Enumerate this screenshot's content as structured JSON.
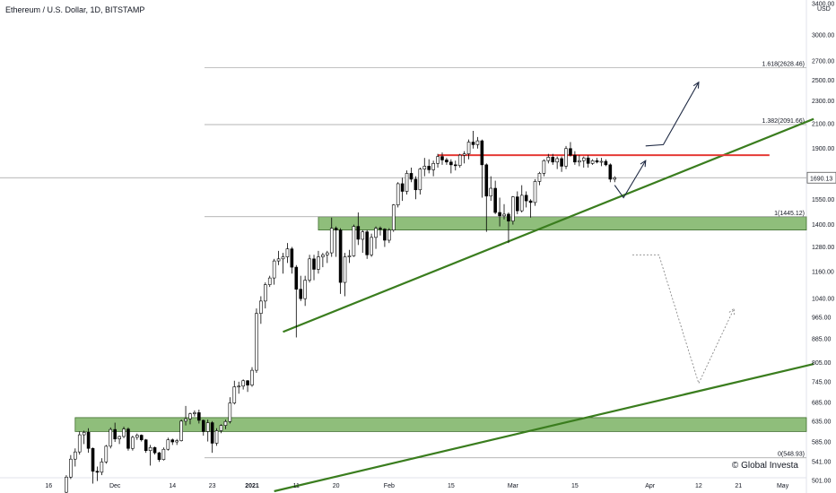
{
  "chart_data": {
    "type": "candlestick",
    "title": "Ethereum / U.S. Dollar, 1D, BITSTAMP",
    "y_unit": "USD",
    "y_scale": "log",
    "ylim": [
      480,
      3450
    ],
    "y_ticks": [
      3400,
      3000,
      2700,
      2500,
      2300,
      2100,
      1900,
      1690.13,
      1550,
      1400,
      1280,
      1160,
      1040,
      965,
      885,
      805,
      745,
      685,
      635,
      585,
      541,
      501
    ],
    "y_tick_labels": [
      "3400.00",
      "3000.00",
      "2700.00",
      "2500.00",
      "2300.00",
      "2100.00",
      "1900.00",
      "1690.13",
      "1550.00",
      "1400.00",
      "1280.00",
      "1160.00",
      "1040.00",
      "965.00",
      "885.00",
      "805.00",
      "745.00",
      "685.00",
      "635.00",
      "585.00",
      "541.00",
      "501.00"
    ],
    "x_labels": [
      {
        "label": "16",
        "date": "2020-11-16"
      },
      {
        "label": "Dec",
        "date": "2020-12-01"
      },
      {
        "label": "14",
        "date": "2020-12-14"
      },
      {
        "label": "23",
        "date": "2020-12-23"
      },
      {
        "label": "2021",
        "date": "2021-01-01"
      },
      {
        "label": "11",
        "date": "2021-01-11"
      },
      {
        "label": "20",
        "date": "2021-01-20"
      },
      {
        "label": "Feb",
        "date": "2021-02-01"
      },
      {
        "label": "15",
        "date": "2021-02-15"
      },
      {
        "label": "Mar",
        "date": "2021-03-01"
      },
      {
        "label": "15",
        "date": "2021-03-15"
      },
      {
        "label": "Apr",
        "date": "2021-04-01"
      },
      {
        "label": "12",
        "date": "2021-04-12"
      },
      {
        "label": "21",
        "date": "2021-04-21"
      },
      {
        "label": "May",
        "date": "2021-05-01"
      }
    ],
    "candles": [
      {
        "date": "2020-11-20",
        "o": 478,
        "h": 512,
        "l": 470,
        "c": 508
      },
      {
        "date": "2020-11-21",
        "o": 508,
        "h": 555,
        "l": 504,
        "c": 546
      },
      {
        "date": "2020-11-22",
        "o": 546,
        "h": 570,
        "l": 530,
        "c": 562
      },
      {
        "date": "2020-11-23",
        "o": 562,
        "h": 610,
        "l": 556,
        "c": 602
      },
      {
        "date": "2020-11-24",
        "o": 602,
        "h": 612,
        "l": 580,
        "c": 608
      },
      {
        "date": "2020-11-25",
        "o": 608,
        "h": 618,
        "l": 560,
        "c": 570
      },
      {
        "date": "2020-11-26",
        "o": 570,
        "h": 572,
        "l": 495,
        "c": 520
      },
      {
        "date": "2020-11-27",
        "o": 520,
        "h": 530,
        "l": 500,
        "c": 518
      },
      {
        "date": "2020-11-28",
        "o": 518,
        "h": 548,
        "l": 512,
        "c": 540
      },
      {
        "date": "2020-11-29",
        "o": 540,
        "h": 578,
        "l": 536,
        "c": 575
      },
      {
        "date": "2020-11-30",
        "o": 575,
        "h": 620,
        "l": 570,
        "c": 615
      },
      {
        "date": "2020-12-01",
        "o": 615,
        "h": 632,
        "l": 585,
        "c": 592
      },
      {
        "date": "2020-12-02",
        "o": 592,
        "h": 600,
        "l": 580,
        "c": 598
      },
      {
        "date": "2020-12-03",
        "o": 598,
        "h": 622,
        "l": 594,
        "c": 616
      },
      {
        "date": "2020-12-04",
        "o": 616,
        "h": 620,
        "l": 565,
        "c": 570
      },
      {
        "date": "2020-12-05",
        "o": 570,
        "h": 600,
        "l": 565,
        "c": 596
      },
      {
        "date": "2020-12-06",
        "o": 596,
        "h": 605,
        "l": 590,
        "c": 601
      },
      {
        "date": "2020-12-07",
        "o": 601,
        "h": 603,
        "l": 586,
        "c": 590
      },
      {
        "date": "2020-12-08",
        "o": 590,
        "h": 592,
        "l": 560,
        "c": 565
      },
      {
        "date": "2020-12-09",
        "o": 565,
        "h": 578,
        "l": 532,
        "c": 572
      },
      {
        "date": "2020-12-10",
        "o": 572,
        "h": 574,
        "l": 556,
        "c": 560
      },
      {
        "date": "2020-12-11",
        "o": 560,
        "h": 562,
        "l": 540,
        "c": 545
      },
      {
        "date": "2020-12-12",
        "o": 545,
        "h": 572,
        "l": 543,
        "c": 568
      },
      {
        "date": "2020-12-13",
        "o": 568,
        "h": 595,
        "l": 565,
        "c": 590
      },
      {
        "date": "2020-12-14",
        "o": 590,
        "h": 593,
        "l": 578,
        "c": 585
      },
      {
        "date": "2020-12-15",
        "o": 585,
        "h": 592,
        "l": 578,
        "c": 588
      },
      {
        "date": "2020-12-16",
        "o": 588,
        "h": 640,
        "l": 586,
        "c": 636
      },
      {
        "date": "2020-12-17",
        "o": 636,
        "h": 676,
        "l": 625,
        "c": 642
      },
      {
        "date": "2020-12-18",
        "o": 642,
        "h": 658,
        "l": 628,
        "c": 655
      },
      {
        "date": "2020-12-19",
        "o": 655,
        "h": 664,
        "l": 648,
        "c": 658
      },
      {
        "date": "2020-12-20",
        "o": 658,
        "h": 666,
        "l": 630,
        "c": 638
      },
      {
        "date": "2020-12-21",
        "o": 638,
        "h": 640,
        "l": 600,
        "c": 610
      },
      {
        "date": "2020-12-22",
        "o": 610,
        "h": 640,
        "l": 586,
        "c": 632
      },
      {
        "date": "2020-12-23",
        "o": 632,
        "h": 636,
        "l": 560,
        "c": 582
      },
      {
        "date": "2020-12-24",
        "o": 582,
        "h": 618,
        "l": 576,
        "c": 612
      },
      {
        "date": "2020-12-25",
        "o": 612,
        "h": 628,
        "l": 606,
        "c": 625
      },
      {
        "date": "2020-12-26",
        "o": 625,
        "h": 640,
        "l": 616,
        "c": 635
      },
      {
        "date": "2020-12-27",
        "o": 635,
        "h": 700,
        "l": 630,
        "c": 684
      },
      {
        "date": "2020-12-28",
        "o": 684,
        "h": 748,
        "l": 680,
        "c": 730
      },
      {
        "date": "2020-12-29",
        "o": 730,
        "h": 745,
        "l": 710,
        "c": 732
      },
      {
        "date": "2020-12-30",
        "o": 732,
        "h": 752,
        "l": 722,
        "c": 748
      },
      {
        "date": "2020-12-31",
        "o": 748,
        "h": 750,
        "l": 715,
        "c": 735
      },
      {
        "date": "2021-01-01",
        "o": 735,
        "h": 790,
        "l": 730,
        "c": 780
      },
      {
        "date": "2021-01-02",
        "o": 780,
        "h": 1000,
        "l": 772,
        "c": 980
      },
      {
        "date": "2021-01-03",
        "o": 980,
        "h": 1050,
        "l": 940,
        "c": 1030
      },
      {
        "date": "2021-01-04",
        "o": 1030,
        "h": 1110,
        "l": 1000,
        "c": 1100
      },
      {
        "date": "2021-01-05",
        "o": 1100,
        "h": 1140,
        "l": 1090,
        "c": 1130
      },
      {
        "date": "2021-01-06",
        "o": 1130,
        "h": 1220,
        "l": 1100,
        "c": 1210
      },
      {
        "date": "2021-01-07",
        "o": 1210,
        "h": 1260,
        "l": 1190,
        "c": 1220
      },
      {
        "date": "2021-01-08",
        "o": 1220,
        "h": 1250,
        "l": 1150,
        "c": 1230
      },
      {
        "date": "2021-01-09",
        "o": 1230,
        "h": 1300,
        "l": 1200,
        "c": 1270
      },
      {
        "date": "2021-01-10",
        "o": 1270,
        "h": 1280,
        "l": 1150,
        "c": 1180
      },
      {
        "date": "2021-01-11",
        "o": 1180,
        "h": 1190,
        "l": 890,
        "c": 1080
      },
      {
        "date": "2021-01-12",
        "o": 1080,
        "h": 1140,
        "l": 1030,
        "c": 1040
      },
      {
        "date": "2021-01-13",
        "o": 1040,
        "h": 1140,
        "l": 1010,
        "c": 1120
      },
      {
        "date": "2021-01-14",
        "o": 1120,
        "h": 1240,
        "l": 1110,
        "c": 1220
      },
      {
        "date": "2021-01-15",
        "o": 1220,
        "h": 1240,
        "l": 1120,
        "c": 1170
      },
      {
        "date": "2021-01-16",
        "o": 1170,
        "h": 1260,
        "l": 1150,
        "c": 1230
      },
      {
        "date": "2021-01-17",
        "o": 1230,
        "h": 1250,
        "l": 1180,
        "c": 1240
      },
      {
        "date": "2021-01-18",
        "o": 1240,
        "h": 1260,
        "l": 1200,
        "c": 1250
      },
      {
        "date": "2021-01-19",
        "o": 1250,
        "h": 1440,
        "l": 1230,
        "c": 1380
      },
      {
        "date": "2021-01-20",
        "o": 1380,
        "h": 1390,
        "l": 1230,
        "c": 1370
      },
      {
        "date": "2021-01-21",
        "o": 1370,
        "h": 1380,
        "l": 1060,
        "c": 1110
      },
      {
        "date": "2021-01-22",
        "o": 1110,
        "h": 1250,
        "l": 1050,
        "c": 1230
      },
      {
        "date": "2021-01-23",
        "o": 1230,
        "h": 1265,
        "l": 1200,
        "c": 1235
      },
      {
        "date": "2021-01-24",
        "o": 1235,
        "h": 1400,
        "l": 1230,
        "c": 1390
      },
      {
        "date": "2021-01-25",
        "o": 1390,
        "h": 1470,
        "l": 1290,
        "c": 1320
      },
      {
        "date": "2021-01-26",
        "o": 1320,
        "h": 1370,
        "l": 1250,
        "c": 1360
      },
      {
        "date": "2021-01-27",
        "o": 1360,
        "h": 1370,
        "l": 1220,
        "c": 1240
      },
      {
        "date": "2021-01-28",
        "o": 1240,
        "h": 1350,
        "l": 1230,
        "c": 1330
      },
      {
        "date": "2021-01-29",
        "o": 1330,
        "h": 1390,
        "l": 1270,
        "c": 1380
      },
      {
        "date": "2021-01-30",
        "o": 1380,
        "h": 1390,
        "l": 1340,
        "c": 1375
      },
      {
        "date": "2021-01-31",
        "o": 1375,
        "h": 1380,
        "l": 1280,
        "c": 1315
      },
      {
        "date": "2021-02-01",
        "o": 1315,
        "h": 1380,
        "l": 1300,
        "c": 1370
      },
      {
        "date": "2021-02-02",
        "o": 1370,
        "h": 1520,
        "l": 1360,
        "c": 1515
      },
      {
        "date": "2021-02-03",
        "o": 1515,
        "h": 1660,
        "l": 1500,
        "c": 1650
      },
      {
        "date": "2021-02-04",
        "o": 1650,
        "h": 1690,
        "l": 1540,
        "c": 1600
      },
      {
        "date": "2021-02-05",
        "o": 1600,
        "h": 1740,
        "l": 1580,
        "c": 1720
      },
      {
        "date": "2021-02-06",
        "o": 1720,
        "h": 1760,
        "l": 1660,
        "c": 1680
      },
      {
        "date": "2021-02-07",
        "o": 1680,
        "h": 1700,
        "l": 1550,
        "c": 1610
      },
      {
        "date": "2021-02-08",
        "o": 1610,
        "h": 1760,
        "l": 1580,
        "c": 1750
      },
      {
        "date": "2021-02-09",
        "o": 1750,
        "h": 1830,
        "l": 1700,
        "c": 1770
      },
      {
        "date": "2021-02-10",
        "o": 1770,
        "h": 1820,
        "l": 1720,
        "c": 1745
      },
      {
        "date": "2021-02-11",
        "o": 1745,
        "h": 1810,
        "l": 1700,
        "c": 1790
      },
      {
        "date": "2021-02-12",
        "o": 1790,
        "h": 1860,
        "l": 1760,
        "c": 1840
      },
      {
        "date": "2021-02-13",
        "o": 1840,
        "h": 1870,
        "l": 1780,
        "c": 1815
      },
      {
        "date": "2021-02-14",
        "o": 1815,
        "h": 1830,
        "l": 1780,
        "c": 1800
      },
      {
        "date": "2021-02-15",
        "o": 1800,
        "h": 1820,
        "l": 1720,
        "c": 1780
      },
      {
        "date": "2021-02-16",
        "o": 1780,
        "h": 1810,
        "l": 1740,
        "c": 1775
      },
      {
        "date": "2021-02-17",
        "o": 1775,
        "h": 1860,
        "l": 1760,
        "c": 1850
      },
      {
        "date": "2021-02-18",
        "o": 1850,
        "h": 1880,
        "l": 1790,
        "c": 1860
      },
      {
        "date": "2021-02-19",
        "o": 1860,
        "h": 1970,
        "l": 1820,
        "c": 1950
      },
      {
        "date": "2021-02-20",
        "o": 1950,
        "h": 2040,
        "l": 1900,
        "c": 1930
      },
      {
        "date": "2021-02-21",
        "o": 1930,
        "h": 1990,
        "l": 1900,
        "c": 1960
      },
      {
        "date": "2021-02-22",
        "o": 1960,
        "h": 1970,
        "l": 1560,
        "c": 1780
      },
      {
        "date": "2021-02-23",
        "o": 1780,
        "h": 1790,
        "l": 1360,
        "c": 1570
      },
      {
        "date": "2021-02-24",
        "o": 1570,
        "h": 1700,
        "l": 1540,
        "c": 1620
      },
      {
        "date": "2021-02-25",
        "o": 1620,
        "h": 1670,
        "l": 1460,
        "c": 1470
      },
      {
        "date": "2021-02-26",
        "o": 1470,
        "h": 1560,
        "l": 1390,
        "c": 1450
      },
      {
        "date": "2021-02-27",
        "o": 1450,
        "h": 1520,
        "l": 1430,
        "c": 1460
      },
      {
        "date": "2021-02-28",
        "o": 1460,
        "h": 1470,
        "l": 1300,
        "c": 1420
      },
      {
        "date": "2021-03-01",
        "o": 1420,
        "h": 1570,
        "l": 1400,
        "c": 1565
      },
      {
        "date": "2021-03-02",
        "o": 1565,
        "h": 1600,
        "l": 1460,
        "c": 1480
      },
      {
        "date": "2021-03-03",
        "o": 1480,
        "h": 1640,
        "l": 1470,
        "c": 1575
      },
      {
        "date": "2021-03-04",
        "o": 1575,
        "h": 1600,
        "l": 1500,
        "c": 1540
      },
      {
        "date": "2021-03-05",
        "o": 1540,
        "h": 1550,
        "l": 1440,
        "c": 1530
      },
      {
        "date": "2021-03-06",
        "o": 1530,
        "h": 1680,
        "l": 1510,
        "c": 1665
      },
      {
        "date": "2021-03-07",
        "o": 1665,
        "h": 1730,
        "l": 1640,
        "c": 1720
      },
      {
        "date": "2021-03-08",
        "o": 1720,
        "h": 1820,
        "l": 1700,
        "c": 1810
      },
      {
        "date": "2021-03-09",
        "o": 1810,
        "h": 1860,
        "l": 1790,
        "c": 1835
      },
      {
        "date": "2021-03-10",
        "o": 1835,
        "h": 1860,
        "l": 1780,
        "c": 1800
      },
      {
        "date": "2021-03-11",
        "o": 1800,
        "h": 1840,
        "l": 1750,
        "c": 1825
      },
      {
        "date": "2021-03-12",
        "o": 1825,
        "h": 1840,
        "l": 1730,
        "c": 1770
      },
      {
        "date": "2021-03-13",
        "o": 1770,
        "h": 1920,
        "l": 1750,
        "c": 1900
      },
      {
        "date": "2021-03-14",
        "o": 1900,
        "h": 1950,
        "l": 1840,
        "c": 1850
      },
      {
        "date": "2021-03-15",
        "o": 1850,
        "h": 1880,
        "l": 1780,
        "c": 1800
      },
      {
        "date": "2021-03-16",
        "o": 1800,
        "h": 1850,
        "l": 1770,
        "c": 1810
      },
      {
        "date": "2021-03-17",
        "o": 1810,
        "h": 1840,
        "l": 1760,
        "c": 1830
      },
      {
        "date": "2021-03-18",
        "o": 1830,
        "h": 1850,
        "l": 1760,
        "c": 1790
      },
      {
        "date": "2021-03-19",
        "o": 1790,
        "h": 1820,
        "l": 1780,
        "c": 1810
      },
      {
        "date": "2021-03-20",
        "o": 1810,
        "h": 1830,
        "l": 1790,
        "c": 1800
      },
      {
        "date": "2021-03-21",
        "o": 1800,
        "h": 1830,
        "l": 1770,
        "c": 1805
      },
      {
        "date": "2021-03-22",
        "o": 1805,
        "h": 1820,
        "l": 1770,
        "c": 1780
      },
      {
        "date": "2021-03-23",
        "o": 1780,
        "h": 1790,
        "l": 1660,
        "c": 1680
      },
      {
        "date": "2021-03-24",
        "o": 1680,
        "h": 1700,
        "l": 1660,
        "c": 1690.13
      }
    ],
    "horizontal_levels": [
      {
        "label": "1.618(2628.46)",
        "value": 2628.46
      },
      {
        "label": "1.382(2091.66)",
        "value": 2091.66
      },
      {
        "label": "1(1445.12)",
        "value": 1445.12
      },
      {
        "label": "0(548.93)",
        "value": 548.93
      }
    ],
    "resistance_line": {
      "value": 1850,
      "from": "2021-02-12",
      "to": "2021-04-28",
      "color": "#e53935"
    },
    "current_price": {
      "label": "1690.13",
      "value": 1690.13
    },
    "zones": [
      {
        "from_date": "2021-01-16",
        "to_date": "2021-05-08",
        "low": 1370,
        "high": 1445,
        "color": "#6aa84f"
      },
      {
        "from_date": "2020-11-22",
        "to_date": "2021-05-08",
        "low": 610,
        "high": 645,
        "color": "#6aa84f"
      }
    ],
    "trendlines": [
      {
        "from": {
          "date": "2021-01-08",
          "value": 910
        },
        "to": {
          "date": "2021-05-08",
          "value": 2140
        },
        "color": "#3a7d1e"
      },
      {
        "from": {
          "date": "2021-01-06",
          "value": 480
        },
        "to": {
          "date": "2021-05-08",
          "value": 800
        },
        "color": "#3a7d1e"
      }
    ],
    "projections": [
      {
        "style": "solid",
        "points": [
          {
            "date": "2021-03-24",
            "value": 1640
          },
          {
            "date": "2021-03-26",
            "value": 1560
          },
          {
            "date": "2021-03-31",
            "value": 1810
          }
        ]
      },
      {
        "style": "solid",
        "points": [
          {
            "date": "2021-03-31",
            "value": 1920
          },
          {
            "date": "2021-04-04",
            "value": 1930
          },
          {
            "date": "2021-04-12",
            "value": 2480
          }
        ]
      },
      {
        "style": "dotted",
        "points": [
          {
            "date": "2021-03-28",
            "value": 1240
          },
          {
            "date": "2021-04-03",
            "value": 1240
          },
          {
            "date": "2021-04-12",
            "value": 740
          },
          {
            "date": "2021-04-20",
            "value": 1000
          }
        ]
      }
    ],
    "colors": {
      "up": "#ffffff",
      "down": "#000000",
      "grid": "#c8c8c8"
    },
    "grid": false,
    "xlabel": "",
    "ylabel": ""
  },
  "watermark": "© Global Investa"
}
